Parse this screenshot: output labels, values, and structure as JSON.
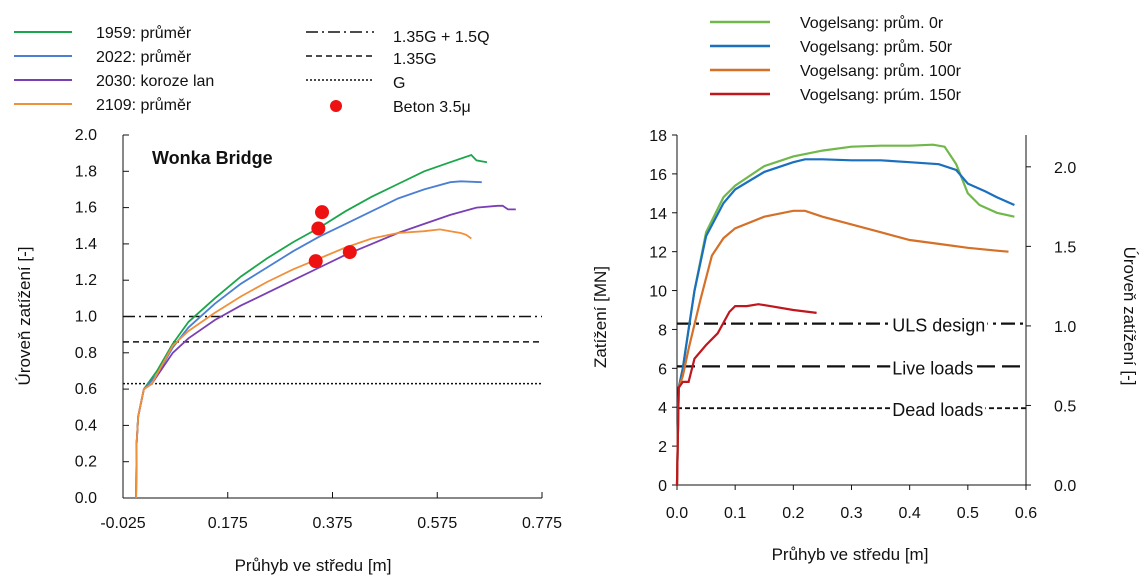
{
  "chart_data": [
    {
      "type": "line",
      "title": "Wonka Bridge",
      "xlabel": "Průhyb ve středu [m]",
      "ylabel": "Úroveň zatížení [-]",
      "xlim": [
        -0.025,
        0.775
      ],
      "ylim": [
        0,
        2
      ],
      "xticks": [
        "-0.025",
        "0.175",
        "0.375",
        "0.575",
        "0.775"
      ],
      "yticks": [
        "0.0",
        "0.2",
        "0.4",
        "0.6",
        "0.8",
        "1.0",
        "1.2",
        "1.4",
        "1.6",
        "1.8",
        "2.0"
      ],
      "grid": false,
      "legend_position": "top",
      "series": [
        {
          "name": "1959: průměr",
          "color": "#1aa64a",
          "points": [
            [
              0,
              0
            ],
            [
              0.001,
              0.3
            ],
            [
              0.004,
              0.45
            ],
            [
              0.015,
              0.6
            ],
            [
              0.04,
              0.7
            ],
            [
              0.07,
              0.85
            ],
            [
              0.1,
              0.97
            ],
            [
              0.15,
              1.1
            ],
            [
              0.2,
              1.22
            ],
            [
              0.25,
              1.32
            ],
            [
              0.3,
              1.41
            ],
            [
              0.35,
              1.49
            ],
            [
              0.4,
              1.58
            ],
            [
              0.45,
              1.66
            ],
            [
              0.5,
              1.73
            ],
            [
              0.55,
              1.8
            ],
            [
              0.6,
              1.85
            ],
            [
              0.64,
              1.89
            ],
            [
              0.65,
              1.86
            ],
            [
              0.67,
              1.85
            ]
          ]
        },
        {
          "name": "2022: průměr",
          "color": "#4a7fd4",
          "points": [
            [
              0,
              0
            ],
            [
              0.001,
              0.3
            ],
            [
              0.004,
              0.45
            ],
            [
              0.015,
              0.6
            ],
            [
              0.04,
              0.68
            ],
            [
              0.07,
              0.83
            ],
            [
              0.1,
              0.94
            ],
            [
              0.15,
              1.07
            ],
            [
              0.2,
              1.18
            ],
            [
              0.25,
              1.27
            ],
            [
              0.3,
              1.36
            ],
            [
              0.35,
              1.44
            ],
            [
              0.4,
              1.51
            ],
            [
              0.45,
              1.58
            ],
            [
              0.5,
              1.65
            ],
            [
              0.55,
              1.7
            ],
            [
              0.6,
              1.74
            ],
            [
              0.62,
              1.745
            ],
            [
              0.66,
              1.74
            ]
          ]
        },
        {
          "name": "2030: koroze lan",
          "color": "#7a3fb4",
          "points": [
            [
              0,
              0
            ],
            [
              0.001,
              0.3
            ],
            [
              0.004,
              0.45
            ],
            [
              0.015,
              0.6
            ],
            [
              0.03,
              0.63
            ],
            [
              0.07,
              0.8
            ],
            [
              0.1,
              0.88
            ],
            [
              0.15,
              0.98
            ],
            [
              0.2,
              1.06
            ],
            [
              0.25,
              1.13
            ],
            [
              0.3,
              1.2
            ],
            [
              0.35,
              1.27
            ],
            [
              0.4,
              1.34
            ],
            [
              0.45,
              1.4
            ],
            [
              0.5,
              1.46
            ],
            [
              0.55,
              1.51
            ],
            [
              0.6,
              1.56
            ],
            [
              0.65,
              1.6
            ],
            [
              0.69,
              1.61
            ],
            [
              0.7,
              1.61
            ],
            [
              0.71,
              1.59
            ],
            [
              0.725,
              1.59
            ]
          ]
        },
        {
          "name": "2109: průměr",
          "color": "#f0903a",
          "points": [
            [
              0,
              0
            ],
            [
              0.001,
              0.3
            ],
            [
              0.004,
              0.45
            ],
            [
              0.015,
              0.6
            ],
            [
              0.03,
              0.63
            ],
            [
              0.07,
              0.84
            ],
            [
              0.1,
              0.92
            ],
            [
              0.15,
              1.02
            ],
            [
              0.2,
              1.11
            ],
            [
              0.25,
              1.19
            ],
            [
              0.3,
              1.26
            ],
            [
              0.35,
              1.32
            ],
            [
              0.4,
              1.38
            ],
            [
              0.45,
              1.43
            ],
            [
              0.5,
              1.46
            ],
            [
              0.55,
              1.47
            ],
            [
              0.58,
              1.48
            ],
            [
              0.6,
              1.47
            ],
            [
              0.62,
              1.46
            ],
            [
              0.63,
              1.45
            ],
            [
              0.64,
              1.43
            ]
          ]
        }
      ],
      "reference_lines": [
        {
          "name": "1.35G + 1.5Q",
          "y": 1.0,
          "style": "dashdot"
        },
        {
          "name": "1.35G",
          "y": 0.86,
          "style": "dashed"
        },
        {
          "name": "G",
          "y": 0.63,
          "style": "dotted"
        }
      ],
      "markers": {
        "name": "Beton 3.5μ",
        "color": "#ee1111",
        "points": [
          [
            0.355,
            1.575
          ],
          [
            0.348,
            1.485
          ],
          [
            0.343,
            1.305
          ],
          [
            0.408,
            1.355
          ]
        ]
      }
    },
    {
      "type": "line",
      "xlabel": "Průhyb ve středu [m]",
      "ylabel": "Zatížení [MN]",
      "y2label": "Úroveň zatížení [-]",
      "xlim": [
        0,
        0.6
      ],
      "ylim": [
        0,
        18
      ],
      "y2lim": [
        0,
        2.2
      ],
      "xticks": [
        "0.0",
        "0.1",
        "0.2",
        "0.3",
        "0.4",
        "0.5",
        "0.6"
      ],
      "yticks": [
        "0",
        "2",
        "4",
        "6",
        "8",
        "10",
        "12",
        "14",
        "16",
        "18"
      ],
      "y2ticks": [
        "0.0",
        "0.5",
        "1.0",
        "1.5",
        "2.0"
      ],
      "grid": false,
      "legend_position": "top",
      "series": [
        {
          "name": "Vogelsang: prům. 0r",
          "color": "#70b84a",
          "points": [
            [
              0,
              0
            ],
            [
              0.003,
              5
            ],
            [
              0.01,
              6
            ],
            [
              0.02,
              8
            ],
            [
              0.03,
              10
            ],
            [
              0.05,
              13
            ],
            [
              0.08,
              14.8
            ],
            [
              0.1,
              15.4
            ],
            [
              0.15,
              16.4
            ],
            [
              0.2,
              16.9
            ],
            [
              0.25,
              17.2
            ],
            [
              0.3,
              17.4
            ],
            [
              0.35,
              17.45
            ],
            [
              0.4,
              17.45
            ],
            [
              0.44,
              17.5
            ],
            [
              0.46,
              17.4
            ],
            [
              0.48,
              16.5
            ],
            [
              0.5,
              15
            ],
            [
              0.52,
              14.4
            ],
            [
              0.55,
              14
            ],
            [
              0.58,
              13.8
            ]
          ]
        },
        {
          "name": "Vogelsang: prům. 50r",
          "color": "#1a6fbe",
          "points": [
            [
              0,
              0
            ],
            [
              0.003,
              5
            ],
            [
              0.01,
              6
            ],
            [
              0.02,
              8
            ],
            [
              0.03,
              10
            ],
            [
              0.05,
              12.8
            ],
            [
              0.08,
              14.5
            ],
            [
              0.1,
              15.2
            ],
            [
              0.15,
              16.1
            ],
            [
              0.2,
              16.6
            ],
            [
              0.22,
              16.75
            ],
            [
              0.25,
              16.75
            ],
            [
              0.3,
              16.7
            ],
            [
              0.35,
              16.7
            ],
            [
              0.4,
              16.6
            ],
            [
              0.45,
              16.5
            ],
            [
              0.48,
              16.2
            ],
            [
              0.5,
              15.5
            ],
            [
              0.53,
              15.1
            ],
            [
              0.55,
              14.8
            ],
            [
              0.58,
              14.4
            ]
          ]
        },
        {
          "name": "Vogelsang: prům. 100r",
          "color": "#d47028",
          "points": [
            [
              0,
              0
            ],
            [
              0.003,
              5
            ],
            [
              0.01,
              5.6
            ],
            [
              0.02,
              7
            ],
            [
              0.04,
              9.5
            ],
            [
              0.06,
              11.8
            ],
            [
              0.08,
              12.7
            ],
            [
              0.1,
              13.2
            ],
            [
              0.15,
              13.8
            ],
            [
              0.2,
              14.1
            ],
            [
              0.22,
              14.1
            ],
            [
              0.25,
              13.8
            ],
            [
              0.3,
              13.4
            ],
            [
              0.35,
              13
            ],
            [
              0.4,
              12.6
            ],
            [
              0.45,
              12.4
            ],
            [
              0.5,
              12.2
            ],
            [
              0.55,
              12.05
            ],
            [
              0.57,
              12
            ]
          ]
        },
        {
          "name": "Vogelsang: prúm. 150r",
          "color": "#c0161e",
          "points": [
            [
              0,
              0
            ],
            [
              0.003,
              5
            ],
            [
              0.01,
              5.3
            ],
            [
              0.02,
              5.3
            ],
            [
              0.03,
              6.5
            ],
            [
              0.05,
              7.2
            ],
            [
              0.07,
              7.8
            ],
            [
              0.09,
              8.9
            ],
            [
              0.1,
              9.2
            ],
            [
              0.12,
              9.2
            ],
            [
              0.14,
              9.3
            ],
            [
              0.16,
              9.2
            ],
            [
              0.2,
              9
            ],
            [
              0.24,
              8.85
            ]
          ]
        }
      ],
      "reference_lines": [
        {
          "name": "ULS design",
          "y": 8.3,
          "style": "dashdot"
        },
        {
          "name": "Live loads",
          "y": 6.1,
          "style": "longdash"
        },
        {
          "name": "Dead loads",
          "y": 3.95,
          "style": "dashed"
        }
      ]
    }
  ]
}
